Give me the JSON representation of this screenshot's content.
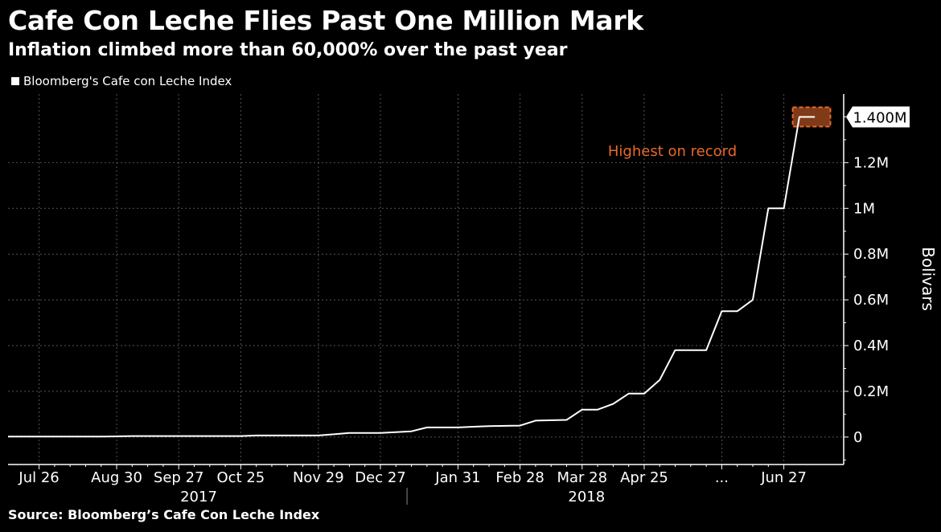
{
  "header": {
    "title": "Cafe Con Leche Flies Past One Million Mark",
    "subtitle": "Inflation climbed more than 60,000% over the past year"
  },
  "legend": {
    "label": "Bloomberg's Cafe con Leche Index"
  },
  "footer": {
    "source": "Source: Bloomberg’s Cafe Con Leche Index"
  },
  "chart_data": {
    "type": "line",
    "title": "Cafe Con Leche Flies Past One Million Mark",
    "subtitle": "Inflation climbed more than 60,000% over the past year",
    "ylabel": "Bolivars",
    "ylim": [
      -120000,
      1500000
    ],
    "yticks": [
      0,
      200000,
      400000,
      600000,
      800000,
      1000000,
      1200000
    ],
    "ytick_labels": [
      "0",
      "0.2M",
      "0.4M",
      "0.6M",
      "0.8M",
      "1M",
      "1.2M"
    ],
    "grid": true,
    "legend_position": "top-left",
    "xlim": [
      "2017-07-12",
      "2018-07-24"
    ],
    "xticks": [
      {
        "date": "2017-07-26",
        "label": "Jul 26"
      },
      {
        "date": "2017-08-30",
        "label": "Aug 30"
      },
      {
        "date": "2017-09-27",
        "label": "Sep 27"
      },
      {
        "date": "2017-10-25",
        "label": "Oct 25"
      },
      {
        "date": "2017-11-29",
        "label": "Nov 29"
      },
      {
        "date": "2017-12-27",
        "label": "Dec 27"
      },
      {
        "date": "2018-01-31",
        "label": "Jan 31"
      },
      {
        "date": "2018-02-28",
        "label": "Feb 28"
      },
      {
        "date": "2018-03-28",
        "label": "Mar 28"
      },
      {
        "date": "2018-04-25",
        "label": "Apr 25"
      },
      {
        "date": "2018-05-30",
        "label": "..."
      },
      {
        "date": "2018-06-27",
        "label": "Jun 27"
      }
    ],
    "year_labels": [
      {
        "label": "2017",
        "date": "2017-10-06"
      },
      {
        "label": "2018",
        "date": "2018-03-30"
      }
    ],
    "year_divider": "2018-01-08",
    "series": [
      {
        "name": "Bloomberg's Cafe con Leche Index",
        "color": "#ffffff",
        "points": [
          [
            "2017-07-12",
            2300
          ],
          [
            "2017-08-23",
            2300
          ],
          [
            "2017-08-30",
            3000
          ],
          [
            "2017-09-06",
            4500
          ],
          [
            "2017-10-25",
            4500
          ],
          [
            "2017-11-01",
            7000
          ],
          [
            "2017-11-29",
            7000
          ],
          [
            "2017-12-06",
            12000
          ],
          [
            "2017-12-13",
            18000
          ],
          [
            "2017-12-27",
            18000
          ],
          [
            "2018-01-10",
            25000
          ],
          [
            "2018-01-17",
            42000
          ],
          [
            "2018-01-31",
            42000
          ],
          [
            "2018-02-07",
            45000
          ],
          [
            "2018-02-14",
            48000
          ],
          [
            "2018-02-28",
            50000
          ],
          [
            "2018-03-07",
            72000
          ],
          [
            "2018-03-21",
            75000
          ],
          [
            "2018-03-28",
            120000
          ],
          [
            "2018-04-04",
            120000
          ],
          [
            "2018-04-11",
            145000
          ],
          [
            "2018-04-18",
            190000
          ],
          [
            "2018-04-25",
            190000
          ],
          [
            "2018-05-02",
            250000
          ],
          [
            "2018-05-09",
            380000
          ],
          [
            "2018-05-23",
            380000
          ],
          [
            "2018-05-30",
            550000
          ],
          [
            "2018-06-06",
            550000
          ],
          [
            "2018-06-13",
            600000
          ],
          [
            "2018-06-20",
            1000000
          ],
          [
            "2018-06-27",
            1000000
          ],
          [
            "2018-07-04",
            1400000
          ],
          [
            "2018-07-11",
            1400000
          ]
        ]
      }
    ],
    "last_value_label": "1.400M",
    "annotations": [
      {
        "text": "Highest on record",
        "color": "#e8692b",
        "highlight_value": 1400000,
        "highlight_dates": [
          "2018-07-01",
          "2018-07-18"
        ]
      }
    ]
  }
}
